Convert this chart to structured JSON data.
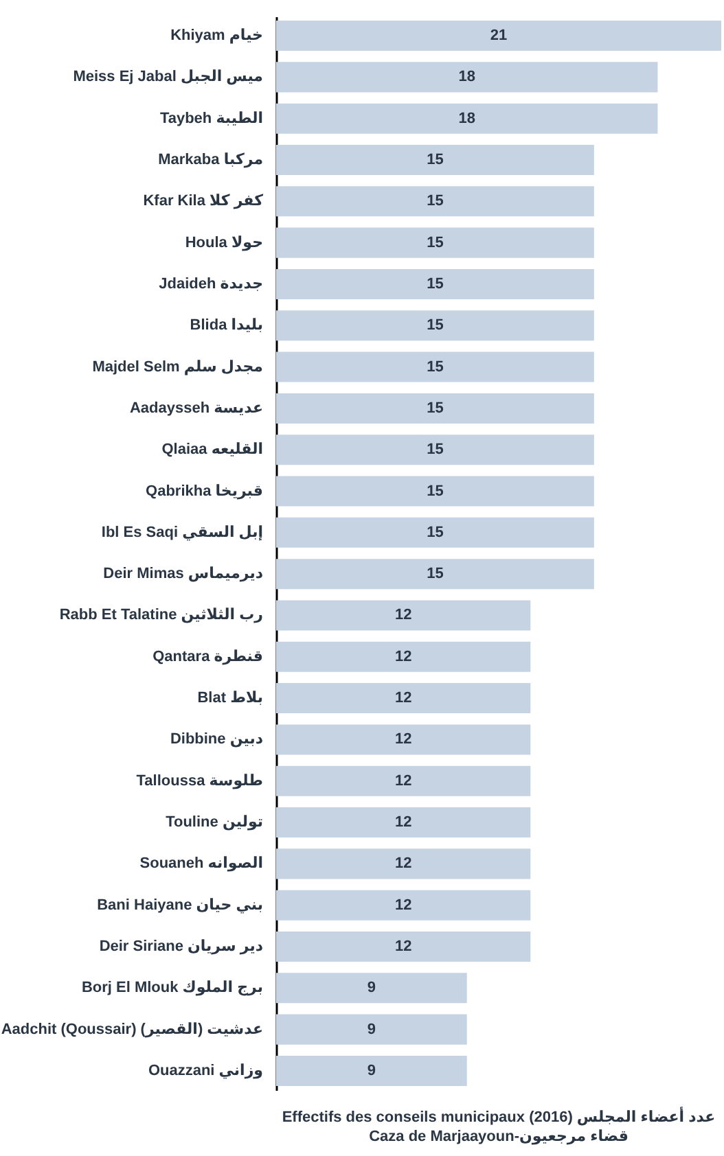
{
  "chart_data": {
    "type": "bar",
    "orientation": "horizontal",
    "title": "Effectifs des conseils municipaux (2016) عدد أعضاء المجلس",
    "subtitle": "Caza de Marjaayoun-قضاء مرجعيون",
    "categories": [
      "Khiyam خيام",
      "Meiss Ej Jabal ميس الجبل",
      "Taybeh الطيبة",
      "Markaba مركبا",
      "Kfar Kila كفر كلا",
      "Houla حولا",
      "Jdaideh جديدة",
      "Blida بليدا",
      "Majdel Selm مجدل سلم",
      "Aadaysseh عديسة",
      "Qlaiaa القليعه",
      "Qabrikha قبريخا",
      "Ibl Es Saqi إبل السقي",
      "Deir Mimas ديرميماس",
      "Rabb Et Talatine رب الثلاثين",
      "Qantara قنطرة",
      "Blat بلاط",
      "Dibbine دبين",
      "Talloussa طلوسة",
      "Touline تولين",
      "Souaneh الصوانه",
      "Bani Haiyane بني حيان",
      "Deir Siriane دير سريان",
      "Borj El Mlouk برج الملوك",
      "Aadchit (Qoussair) عدشيت (القصير)",
      "Ouazzani وزاني"
    ],
    "values": [
      21,
      18,
      18,
      15,
      15,
      15,
      15,
      15,
      15,
      15,
      15,
      15,
      15,
      15,
      12,
      12,
      12,
      12,
      12,
      12,
      12,
      12,
      12,
      9,
      9,
      9
    ],
    "color": "#c5d3e2",
    "xlim": [
      0,
      21
    ],
    "data_labels": true,
    "tick_labels": "y"
  }
}
